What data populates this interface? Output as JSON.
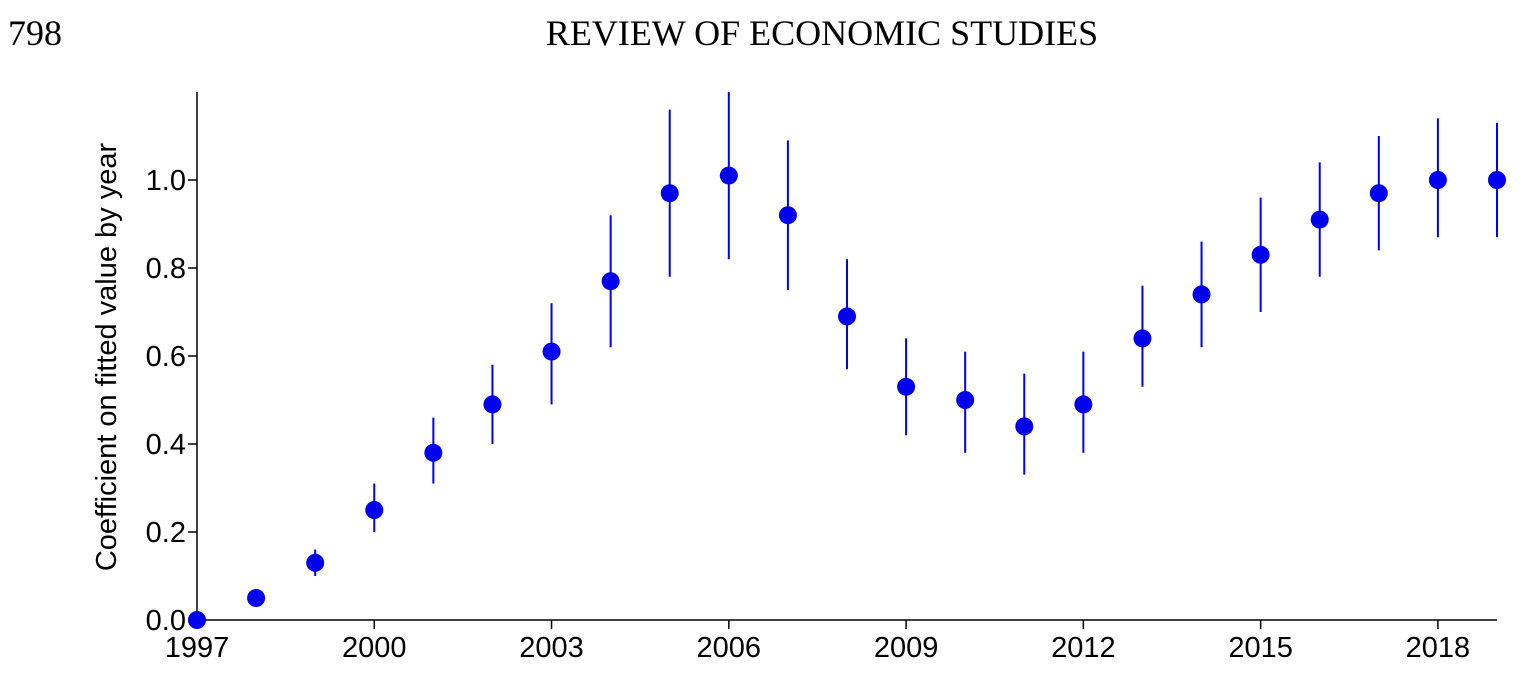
{
  "header": {
    "page_number": "798",
    "journal_title": "REVIEW OF ECONOMIC STUDIES"
  },
  "chart_data": {
    "type": "scatter",
    "title": "",
    "xlabel": "",
    "ylabel": "Coefficient on fitted value by year",
    "xlim": [
      1997,
      2019
    ],
    "ylim": [
      0,
      1.2
    ],
    "x_ticks": [
      1997,
      2000,
      2003,
      2006,
      2009,
      2012,
      2015,
      2018
    ],
    "y_ticks": [
      0.0,
      0.2,
      0.4,
      0.6,
      0.8,
      1.0
    ],
    "y_tick_labels": [
      "0.0",
      "0.2",
      "0.4",
      "0.6",
      "0.8",
      "1.0"
    ],
    "grid": false,
    "color": "#0000ee",
    "series": [
      {
        "x": [
          1997,
          1998,
          1999,
          2000,
          2001,
          2002,
          2003,
          2004,
          2005,
          2006,
          2007,
          2008,
          2009,
          2010,
          2011,
          2012,
          2013,
          2014,
          2015,
          2016,
          2017,
          2018,
          2019
        ],
        "y": [
          0.0,
          0.05,
          0.13,
          0.25,
          0.38,
          0.49,
          0.61,
          0.77,
          0.97,
          1.01,
          0.92,
          0.69,
          0.53,
          0.5,
          0.44,
          0.49,
          0.64,
          0.74,
          0.83,
          0.91,
          0.97,
          1.0,
          1.0
        ],
        "lower": [
          0.0,
          0.05,
          0.1,
          0.2,
          0.31,
          0.4,
          0.49,
          0.62,
          0.78,
          0.82,
          0.75,
          0.57,
          0.42,
          0.38,
          0.33,
          0.38,
          0.53,
          0.62,
          0.7,
          0.78,
          0.84,
          0.87,
          0.87
        ],
        "upper": [
          0.0,
          0.05,
          0.16,
          0.31,
          0.46,
          0.58,
          0.72,
          0.92,
          1.16,
          1.2,
          1.09,
          0.82,
          0.64,
          0.61,
          0.56,
          0.61,
          0.76,
          0.86,
          0.96,
          1.04,
          1.1,
          1.14,
          1.13
        ]
      }
    ]
  }
}
